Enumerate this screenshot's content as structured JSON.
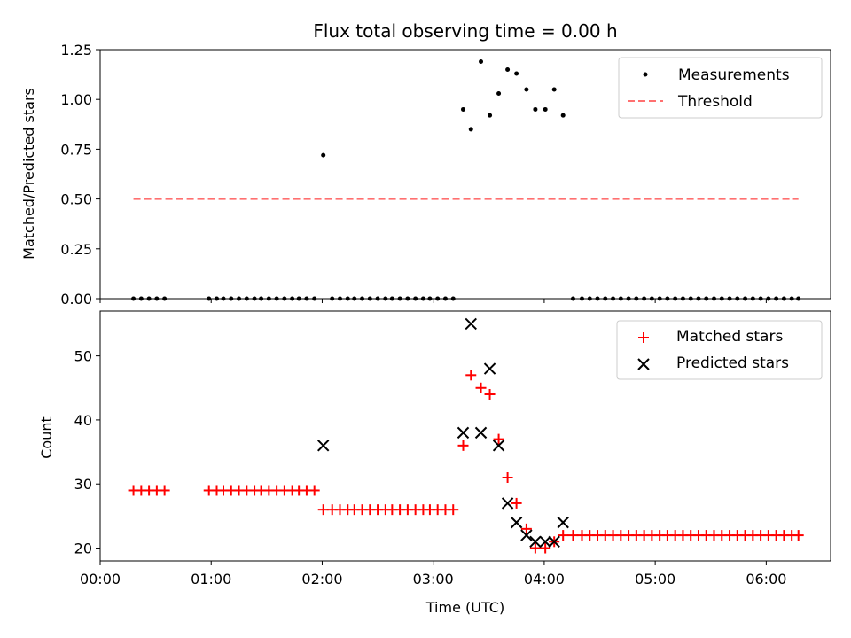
{
  "chart_data": [
    {
      "type": "scatter",
      "title": "Flux total observing time = 0.00 h",
      "xlabel": "",
      "ylabel": "Matched/Predicted stars",
      "xlim": [
        0,
        6.58
      ],
      "ylim": [
        0,
        1.25
      ],
      "yticks": [
        0,
        0.25,
        0.5,
        0.75,
        1.0,
        1.25
      ],
      "yticklabels": [
        "0.00",
        "0.25",
        "0.50",
        "0.75",
        "1.00",
        "1.25"
      ],
      "legend_position": "top-right",
      "series": [
        {
          "name": "Measurements",
          "kind": "scatter",
          "marker": "dot",
          "color": "#000000",
          "x": [
            0.3,
            0.37,
            0.44,
            0.51,
            0.58,
            0.98,
            1.05,
            1.11,
            1.18,
            1.25,
            1.32,
            1.39,
            1.45,
            1.52,
            1.59,
            1.66,
            1.73,
            1.79,
            1.86,
            1.93,
            2.01,
            2.09,
            2.16,
            2.23,
            2.29,
            2.36,
            2.43,
            2.5,
            2.57,
            2.63,
            2.7,
            2.77,
            2.84,
            2.91,
            2.97,
            3.04,
            3.11,
            3.18,
            3.27,
            3.34,
            3.43,
            3.51,
            3.59,
            3.67,
            3.75,
            3.84,
            3.92,
            4.01,
            4.09,
            4.17,
            4.26,
            4.34,
            4.41,
            4.48,
            4.55,
            4.62,
            4.69,
            4.76,
            4.83,
            4.9,
            4.97,
            5.04,
            5.11,
            5.18,
            5.25,
            5.32,
            5.39,
            5.46,
            5.53,
            5.6,
            5.67,
            5.74,
            5.81,
            5.88,
            5.95,
            6.02,
            6.09,
            6.16,
            6.23,
            6.29
          ],
          "y": [
            0,
            0,
            0,
            0,
            0,
            0,
            0,
            0,
            0,
            0,
            0,
            0,
            0,
            0,
            0,
            0,
            0,
            0,
            0,
            0,
            0.72,
            0,
            0,
            0,
            0,
            0,
            0,
            0,
            0,
            0,
            0,
            0,
            0,
            0,
            0,
            0,
            0,
            0,
            0.95,
            0.85,
            1.19,
            0.92,
            1.03,
            1.15,
            1.13,
            1.05,
            0.95,
            0.95,
            1.05,
            0.92,
            0,
            0,
            0,
            0,
            0,
            0,
            0,
            0,
            0,
            0,
            0,
            0,
            0,
            0,
            0,
            0,
            0,
            0,
            0,
            0,
            0,
            0,
            0,
            0,
            0,
            0,
            0,
            0,
            0,
            0
          ]
        },
        {
          "name": "Threshold",
          "kind": "line",
          "style": "dashed",
          "color": "#ff7070",
          "x": [
            0.3,
            6.29
          ],
          "y": [
            0.5,
            0.5
          ]
        }
      ]
    },
    {
      "type": "scatter",
      "title": "",
      "xlabel": "Time (UTC)",
      "ylabel": "Count",
      "xlim": [
        0,
        6.58
      ],
      "ylim": [
        18,
        57
      ],
      "xticks": [
        0,
        1,
        2,
        3,
        4,
        5,
        6
      ],
      "xticklabels": [
        "00:00",
        "01:00",
        "02:00",
        "03:00",
        "04:00",
        "05:00",
        "06:00"
      ],
      "yticks": [
        20,
        30,
        40,
        50
      ],
      "yticklabels": [
        "20",
        "30",
        "40",
        "50"
      ],
      "legend_position": "top-right",
      "series": [
        {
          "name": "Matched stars",
          "kind": "scatter",
          "marker": "plus",
          "color": "#ff0000",
          "x": [
            0.3,
            0.37,
            0.44,
            0.51,
            0.58,
            0.98,
            1.05,
            1.11,
            1.18,
            1.25,
            1.32,
            1.39,
            1.45,
            1.52,
            1.59,
            1.66,
            1.73,
            1.79,
            1.86,
            1.93,
            2.01,
            2.09,
            2.16,
            2.23,
            2.29,
            2.36,
            2.43,
            2.5,
            2.57,
            2.63,
            2.7,
            2.77,
            2.84,
            2.91,
            2.97,
            3.04,
            3.11,
            3.18,
            3.27,
            3.34,
            3.43,
            3.51,
            3.59,
            3.67,
            3.75,
            3.84,
            3.92,
            4.01,
            4.09,
            4.17,
            4.26,
            4.34,
            4.41,
            4.48,
            4.55,
            4.62,
            4.69,
            4.76,
            4.83,
            4.9,
            4.97,
            5.04,
            5.11,
            5.18,
            5.25,
            5.32,
            5.39,
            5.46,
            5.53,
            5.6,
            5.67,
            5.74,
            5.81,
            5.88,
            5.95,
            6.02,
            6.09,
            6.16,
            6.23,
            6.29
          ],
          "y": [
            29,
            29,
            29,
            29,
            29,
            29,
            29,
            29,
            29,
            29,
            29,
            29,
            29,
            29,
            29,
            29,
            29,
            29,
            29,
            29,
            26,
            26,
            26,
            26,
            26,
            26,
            26,
            26,
            26,
            26,
            26,
            26,
            26,
            26,
            26,
            26,
            26,
            26,
            36,
            47,
            45,
            44,
            37,
            31,
            27,
            23,
            20,
            20,
            21,
            22,
            22,
            22,
            22,
            22,
            22,
            22,
            22,
            22,
            22,
            22,
            22,
            22,
            22,
            22,
            22,
            22,
            22,
            22,
            22,
            22,
            22,
            22,
            22,
            22,
            22,
            22,
            22,
            22,
            22,
            22
          ]
        },
        {
          "name": "Predicted stars",
          "kind": "scatter",
          "marker": "x",
          "color": "#000000",
          "x": [
            2.01,
            3.27,
            3.34,
            3.43,
            3.51,
            3.59,
            3.67,
            3.75,
            3.84,
            3.92,
            4.01,
            4.09,
            4.17
          ],
          "y": [
            36,
            38,
            55,
            38,
            48,
            36,
            27,
            24,
            22,
            21,
            21,
            21,
            24
          ]
        }
      ]
    }
  ]
}
